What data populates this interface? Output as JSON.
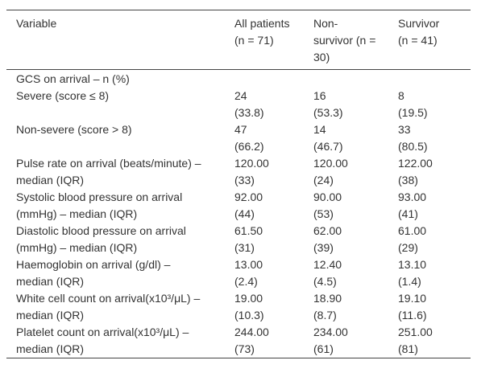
{
  "table": {
    "header": [
      "Variable",
      "All patients (n = 71)",
      "Non-survivor (n = 30)",
      "Survivor (n = 41)"
    ],
    "rows": [
      {
        "label": "GCS on arrival – n (%)",
        "cells": []
      },
      {
        "label": "Severe (score ≤ 8)",
        "cells": [
          [
            "24",
            "(33.8)"
          ],
          [
            "16",
            "(53.3)"
          ],
          [
            "8",
            "(19.5)"
          ]
        ]
      },
      {
        "label": "Non-severe (score > 8)",
        "cells": [
          [
            "47",
            "(66.2)"
          ],
          [
            "14",
            "(46.7)"
          ],
          [
            "33",
            "(80.5)"
          ]
        ]
      },
      {
        "label": "Pulse rate on arrival (beats/minute) – median (IQR)",
        "cells": [
          [
            "120.00",
            "(33)"
          ],
          [
            "120.00",
            "(24)"
          ],
          [
            "122.00",
            "(38)"
          ]
        ]
      },
      {
        "label": "Systolic blood pressure on arrival (mmHg) – median (IQR)",
        "cells": [
          [
            "92.00",
            "(44)"
          ],
          [
            "90.00",
            "(53)"
          ],
          [
            "93.00",
            "(41)"
          ]
        ]
      },
      {
        "label": "Diastolic blood pressure on arrival (mmHg) – median (IQR)",
        "cells": [
          [
            "61.50",
            "(31)"
          ],
          [
            "62.00",
            "(39)"
          ],
          [
            "61.00",
            "(29)"
          ]
        ]
      },
      {
        "label": "Haemoglobin on arrival (g/dl) – median (IQR)",
        "cells": [
          [
            "13.00",
            "(2.4)"
          ],
          [
            "12.40",
            "(4.5)"
          ],
          [
            "13.10",
            "(1.4)"
          ]
        ]
      },
      {
        "label": "White cell count on arrival(x10³/μL) – median (IQR)",
        "cells": [
          [
            "19.00",
            "(10.3)"
          ],
          [
            "18.90",
            "(8.7)"
          ],
          [
            "19.10",
            "(11.6)"
          ]
        ]
      },
      {
        "label": "Platelet count on arrival(x10³/μL) – median (IQR)",
        "cells": [
          [
            "244.00",
            "(73)"
          ],
          [
            "234.00",
            "(61)"
          ],
          [
            "251.00",
            "(81)"
          ]
        ]
      }
    ]
  }
}
